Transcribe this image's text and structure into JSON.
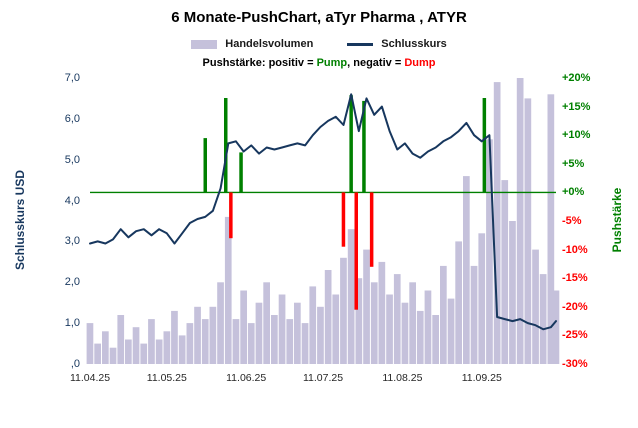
{
  "title": "6 Monate-PushChart, aTyr Pharma , ATYR",
  "legend": {
    "volume_label": "Handelsvolumen",
    "close_label": "Schlusskurs",
    "push_prefix": "Pushstärke:",
    "positive_label": "positiv =",
    "pump_label": "Pump",
    "separator": ",",
    "negative_label": "negativ =",
    "dump_label": "Dump"
  },
  "axes": {
    "left_title": "Schlusskurs USD",
    "right_title": "Pushstärke",
    "left_ticks": [
      "7,0",
      "6,0",
      "5,0",
      "4,0",
      "3,0",
      "2,0",
      "1,0",
      ",0"
    ],
    "right_ticks": [
      "+20%",
      "+15%",
      "+10%",
      "+5%",
      "+0%",
      "-5%",
      "-10%",
      "-15%",
      "-20%",
      "-25%",
      "-30%"
    ],
    "x_ticks": [
      "11.04.25",
      "11.05.25",
      "11.06.25",
      "11.07.25",
      "11.08.25",
      "11.09.25"
    ]
  },
  "colors": {
    "close_line": "#17375E",
    "volume": "#C5C1DB",
    "positive": "#008000",
    "negative": "#FF0000"
  },
  "chart_data": {
    "type": "composite",
    "title": "6 Monate-PushChart, aTyr Pharma , ATYR",
    "x_range": [
      "11.04.25",
      "10.10.25"
    ],
    "left_axis": {
      "label": "Schlusskurs USD",
      "min": 0,
      "max": 7
    },
    "right_axis": {
      "label": "Pushstärke",
      "min": -30,
      "max": 20,
      "unit": "%",
      "zero_line": true
    },
    "volume_axis_note": "Handelsvolumen bars unlabeled, relative units scaled to plot height (0-7)",
    "x": [
      "11.04.25",
      "14.04.25",
      "17.04.25",
      "20.04.25",
      "23.04.25",
      "26.04.25",
      "29.04.25",
      "02.05.25",
      "05.05.25",
      "08.05.25",
      "11.05.25",
      "14.05.25",
      "17.05.25",
      "20.05.25",
      "23.05.25",
      "26.05.25",
      "29.05.25",
      "01.06.25",
      "04.06.25",
      "07.06.25",
      "10.06.25",
      "13.06.25",
      "16.06.25",
      "19.06.25",
      "22.06.25",
      "25.06.25",
      "28.06.25",
      "01.07.25",
      "04.07.25",
      "07.07.25",
      "10.07.25",
      "13.07.25",
      "16.07.25",
      "19.07.25",
      "22.07.25",
      "25.07.25",
      "28.07.25",
      "31.07.25",
      "03.08.25",
      "06.08.25",
      "09.08.25",
      "12.08.25",
      "15.08.25",
      "18.08.25",
      "21.08.25",
      "24.08.25",
      "27.08.25",
      "30.08.25",
      "02.09.25",
      "05.09.25",
      "08.09.25",
      "11.09.25",
      "14.09.25",
      "17.09.25",
      "20.09.25",
      "23.09.25",
      "26.09.25",
      "29.09.25",
      "02.10.25",
      "05.10.25",
      "08.10.25",
      "10.10.25"
    ],
    "series": [
      {
        "name": "Schlusskurs",
        "type": "line",
        "values": [
          2.95,
          3.0,
          2.95,
          3.05,
          3.3,
          3.1,
          3.25,
          3.3,
          3.15,
          3.3,
          3.2,
          2.95,
          3.2,
          3.45,
          3.55,
          3.6,
          3.75,
          4.3,
          5.4,
          5.45,
          5.2,
          5.35,
          5.15,
          5.3,
          5.25,
          5.3,
          5.35,
          5.4,
          5.35,
          5.6,
          5.8,
          5.95,
          6.05,
          5.85,
          6.6,
          5.7,
          6.5,
          6.1,
          6.3,
          5.7,
          5.25,
          5.4,
          5.15,
          5.05,
          5.2,
          5.3,
          5.45,
          5.55,
          5.7,
          5.9,
          5.6,
          5.45,
          5.6,
          1.15,
          1.1,
          1.05,
          1.1,
          1.0,
          0.95,
          0.85,
          0.9,
          1.05
        ]
      },
      {
        "name": "Handelsvolumen",
        "type": "bar",
        "values": [
          1.0,
          0.5,
          0.8,
          0.4,
          1.2,
          0.6,
          0.9,
          0.5,
          1.1,
          0.6,
          0.8,
          1.3,
          0.7,
          1.0,
          1.4,
          1.1,
          1.4,
          2.0,
          3.6,
          1.1,
          1.8,
          1.0,
          1.5,
          2.0,
          1.2,
          1.7,
          1.1,
          1.5,
          1.0,
          1.9,
          1.4,
          2.3,
          1.7,
          2.6,
          3.3,
          2.1,
          2.8,
          2.0,
          2.5,
          1.7,
          2.2,
          1.5,
          2.0,
          1.3,
          1.8,
          1.2,
          2.4,
          1.6,
          3.0,
          4.6,
          2.4,
          3.2,
          5.5,
          6.9,
          4.5,
          3.5,
          7.0,
          6.5,
          2.8,
          2.2,
          6.6,
          1.8
        ]
      }
    ],
    "push_events": [
      {
        "date": "26.05.25",
        "value": 9.5
      },
      {
        "date": "03.06.25",
        "value": 16.5
      },
      {
        "date": "05.06.25",
        "value": -8.0
      },
      {
        "date": "09.06.25",
        "value": 7.0
      },
      {
        "date": "19.07.25",
        "value": -9.5
      },
      {
        "date": "22.07.25",
        "value": 17.0
      },
      {
        "date": "24.07.25",
        "value": -20.5
      },
      {
        "date": "27.07.25",
        "value": 16.0
      },
      {
        "date": "30.07.25",
        "value": -13.0
      },
      {
        "date": "12.09.25",
        "value": 16.5
      }
    ]
  }
}
